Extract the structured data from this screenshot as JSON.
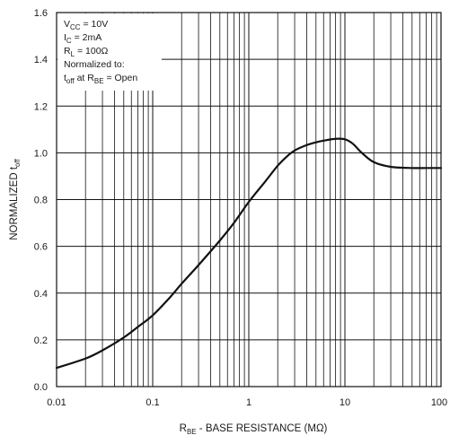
{
  "chart_data": {
    "type": "line",
    "x_scale": "log",
    "xlim": [
      0.01,
      100
    ],
    "ylim": [
      0.0,
      1.6
    ],
    "grid": true,
    "x_tick_labels": [
      "0.01",
      "0.1",
      "1",
      "10",
      "100"
    ],
    "y_tick_labels": [
      "0.0",
      "0.2",
      "0.4",
      "0.6",
      "0.8",
      "1.0",
      "1.2",
      "1.4",
      "1.6"
    ],
    "xlabel": {
      "main": "R",
      "sub": "BE",
      "rest": " - BASE RESISTANCE (MΩ)"
    },
    "ylabel": {
      "main": "NORMALIZED t",
      "sub": "off"
    },
    "annotations": [
      {
        "main": "V",
        "sub": "CC",
        "rest": " = 10V"
      },
      {
        "main": "I",
        "sub": "C",
        "rest": " = 2mA"
      },
      {
        "main": "R",
        "sub": "L",
        "rest": " = 100Ω"
      },
      {
        "main": "Normalized to:",
        "sub": "",
        "rest": ""
      },
      {
        "main": "t",
        "sub": "off",
        "rest": " at R",
        "sub2": "BE",
        "rest2": " = Open"
      }
    ],
    "series": [
      {
        "x": [
          0.01,
          0.02,
          0.03,
          0.05,
          0.07,
          0.1,
          0.15,
          0.2,
          0.3,
          0.5,
          0.7,
          1,
          1.5,
          2,
          2.5,
          3,
          4,
          5,
          6,
          8,
          10,
          12,
          15,
          20,
          30,
          50,
          70,
          100
        ],
        "y": [
          0.08,
          0.12,
          0.155,
          0.21,
          0.255,
          0.305,
          0.38,
          0.44,
          0.52,
          0.625,
          0.7,
          0.79,
          0.88,
          0.945,
          0.985,
          1.01,
          1.033,
          1.045,
          1.052,
          1.06,
          1.058,
          1.04,
          1.0,
          0.96,
          0.94,
          0.935,
          0.935,
          0.935
        ]
      }
    ]
  }
}
